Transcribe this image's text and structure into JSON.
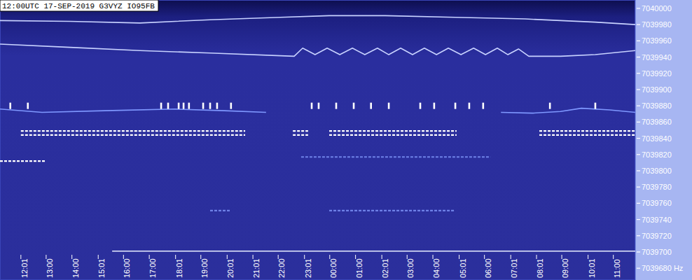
{
  "chart_data": {
    "type": "line",
    "title": "12:00UTC 17-SEP-2019 G3VYZ IO95FB",
    "xlim": [
      -0.79,
      23.85
    ],
    "ylim": [
      7039665.5,
      7040010.3
    ],
    "grid": false,
    "xticks": [
      {
        "value": 0.02,
        "label": "12:01"
      },
      {
        "value": 1,
        "label": "13:00"
      },
      {
        "value": 2,
        "label": "14:00"
      },
      {
        "value": 3.02,
        "label": "15:01"
      },
      {
        "value": 4,
        "label": "16:00"
      },
      {
        "value": 5,
        "label": "17:00"
      },
      {
        "value": 6.02,
        "label": "18:01"
      },
      {
        "value": 7,
        "label": "19:00"
      },
      {
        "value": 8.02,
        "label": "20:01"
      },
      {
        "value": 9.02,
        "label": "21:01"
      },
      {
        "value": 10,
        "label": "22:00"
      },
      {
        "value": 11.02,
        "label": "23:01"
      },
      {
        "value": 12,
        "label": "00:00"
      },
      {
        "value": 13,
        "label": "01:00"
      },
      {
        "value": 14.02,
        "label": "02:01"
      },
      {
        "value": 15,
        "label": "03:00"
      },
      {
        "value": 16,
        "label": "04:00"
      },
      {
        "value": 17.02,
        "label": "05:01"
      },
      {
        "value": 18,
        "label": "06:00"
      },
      {
        "value": 19.02,
        "label": "07:01"
      },
      {
        "value": 20.02,
        "label": "08:01"
      },
      {
        "value": 21,
        "label": "09:00"
      },
      {
        "value": 22.02,
        "label": "10:01"
      },
      {
        "value": 23,
        "label": "11:00"
      }
    ],
    "yticks": [
      {
        "value": 7039680,
        "label": "7039680 Hz"
      },
      7039700,
      7039720,
      7039740,
      7039760,
      7039780,
      7039800,
      7039820,
      7039840,
      7039860,
      7039880,
      7039900,
      7039920,
      7039940,
      7039960,
      7039980,
      7040000
    ],
    "series": [
      {
        "color": "#c8d2ff",
        "x": [
          -0.79,
          1.92,
          4.64,
          7.36,
          10.08,
          11.98,
          14.15,
          16.87,
          19.58,
          22.3,
          23.85
        ],
        "values": [
          7039985,
          7039984,
          7039982,
          7039986,
          7039989,
          7039991,
          7039991,
          7039989,
          7039987,
          7039983,
          7039980
        ]
      },
      {
        "color": "#c8d2ff",
        "x": [
          -0.79,
          1.92,
          4.64,
          7.36,
          10.62,
          10.95,
          11.43,
          11.9,
          12.39,
          12.88,
          13.36,
          13.85,
          14.29,
          14.75,
          15.21,
          15.67,
          16.14,
          16.6,
          17.09,
          17.58,
          18.04,
          18.5,
          18.91,
          19.32,
          19.72,
          20.95,
          22.3,
          23.85
        ],
        "values": [
          7039956,
          7039952,
          7039948,
          7039945,
          7039941,
          7039951,
          7039943,
          7039951,
          7039943,
          7039951,
          7039943,
          7039951,
          7039943,
          7039951,
          7039943,
          7039951,
          7039943,
          7039951,
          7039943,
          7039951,
          7039943,
          7039951,
          7039943,
          7039950,
          7039941,
          7039941,
          7039943,
          7039948
        ]
      },
      {
        "color": "#7f98ff",
        "x": [
          -0.79,
          0.84,
          3.28,
          6.0,
          7.9,
          9.53,
          14.0,
          18.64,
          19.86,
          20.95,
          21.76,
          22.85,
          23.85
        ],
        "values": [
          7039876,
          7039872,
          7039874,
          7039876,
          7039874,
          7039872,
          null,
          7039872,
          7039871,
          7039873,
          7039877,
          7039875,
          7039872
        ]
      },
      {
        "color": "#e8eeff",
        "x": [
          3.56,
          13.7,
          23.85
        ],
        "values": [
          7039701,
          7039701,
          7039701
        ]
      },
      {
        "color": "#ffffff",
        "line_style": "dashed",
        "x": [
          0.02,
          8.72,
          9.6,
          10.57,
          11.16,
          11.5,
          11.98,
          16.92,
          18.5,
          20.13,
          23.85
        ],
        "values": [
          7039849,
          7039849,
          null,
          7039849,
          7039849,
          null,
          7039849,
          7039849,
          null,
          7039849,
          7039849
        ]
      },
      {
        "color": "#ffffff",
        "line_style": "dashed",
        "x": [
          0.02,
          8.72,
          9.6,
          10.57,
          11.16,
          11.5,
          11.98,
          16.92,
          18.5,
          20.13,
          23.85
        ],
        "values": [
          7039844,
          7039844,
          null,
          7039844,
          7039844,
          null,
          7039844,
          7039844,
          null,
          7039844,
          7039844
        ]
      },
      {
        "color": "#ffffff",
        "line_style": "dashed",
        "x": [
          -0.79,
          0.97
        ],
        "values": [
          7039812,
          7039812
        ]
      },
      {
        "color": "#6f82e8",
        "line_style": "dashed",
        "x": [
          10.89,
          18.23
        ],
        "values": [
          7039817,
          7039817
        ]
      },
      {
        "color": "#6f82e8",
        "line_style": "dashed",
        "x": [
          7.36,
          8.17,
          9.5,
          11.98,
          16.87
        ],
        "values": [
          7039751,
          7039751,
          null,
          7039751,
          7039751
        ]
      },
      {
        "type": "scatter",
        "marker": "bar",
        "color": "#ffffff",
        "x": [
          -0.39,
          0.29,
          5.46,
          5.73,
          6.14,
          6.33,
          6.54,
          7.09,
          7.36,
          7.63,
          8.17,
          11.3,
          11.57,
          12.25,
          12.93,
          13.6,
          14.29,
          15.51,
          16.05,
          16.87,
          17.41,
          17.95,
          20.54,
          22.3
        ],
        "values": [
          7039880,
          7039880,
          7039880,
          7039880,
          7039880,
          7039880,
          7039880,
          7039880,
          7039880,
          7039880,
          7039880,
          7039880,
          7039880,
          7039880,
          7039880,
          7039880,
          7039880,
          7039880,
          7039880,
          7039880,
          7039880,
          7039880,
          7039880,
          7039880
        ]
      }
    ]
  }
}
